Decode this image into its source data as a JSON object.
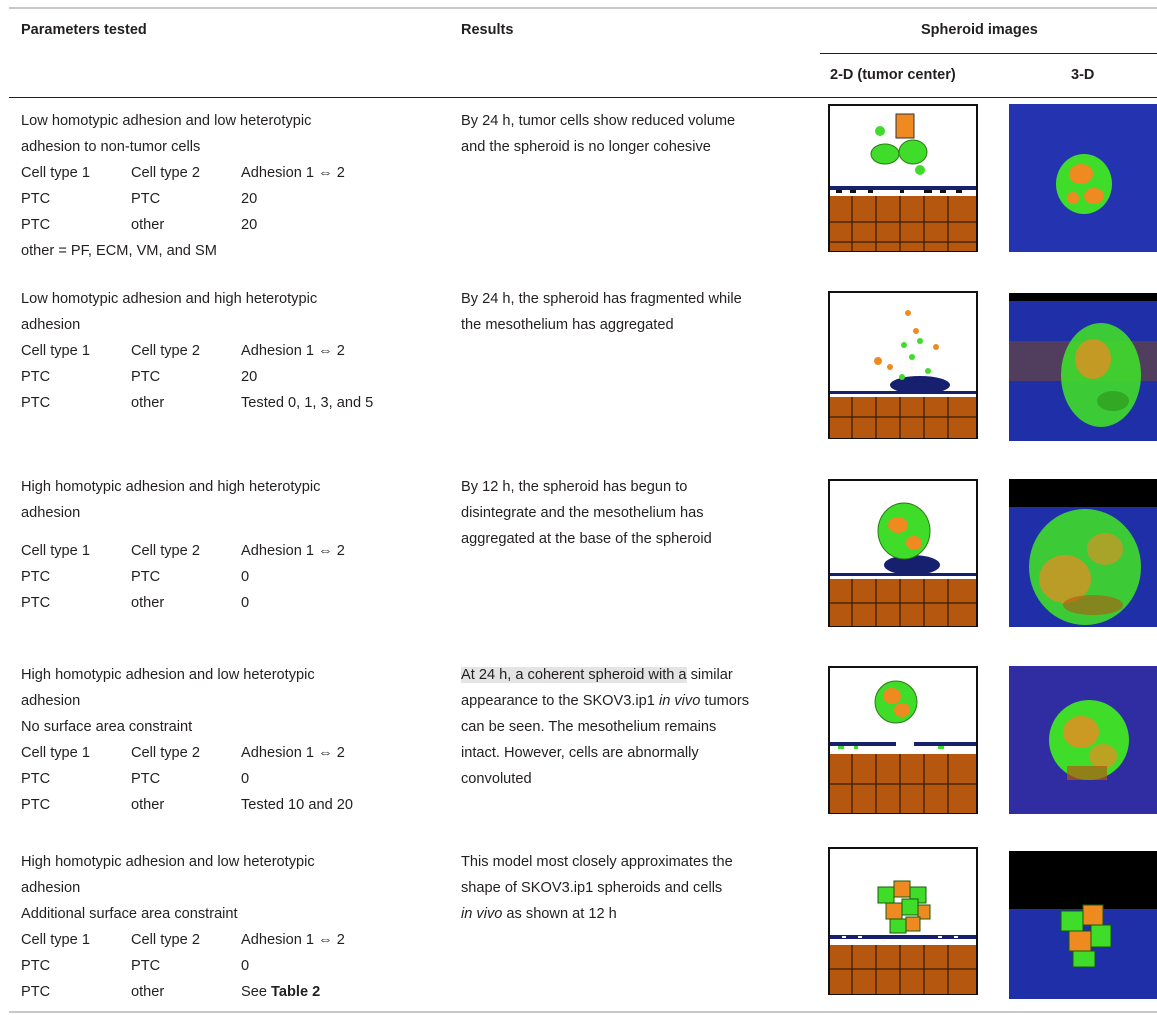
{
  "header": {
    "params": "Parameters tested",
    "results": "Results",
    "images": "Spheroid images",
    "col_2d": "2-D (tumor center)",
    "col_3d": "3-D"
  },
  "rows": [
    {
      "desc": [
        "Low homotypic adhesion and low heterotypic",
        "adhesion to non-tumor cells"
      ],
      "table": [
        [
          "Cell type 1",
          "Cell type 2",
          "Adhesion 1 ⇔ 2"
        ],
        [
          "PTC",
          "PTC",
          "20"
        ],
        [
          "PTC",
          "other",
          "20"
        ]
      ],
      "note": "other = PF, ECM, VM, and SM",
      "result": [
        "By 24 h, tumor cells show reduced volume",
        "and the spheroid is no longer cohesive"
      ]
    },
    {
      "desc": [
        "Low homotypic adhesion and high heterotypic",
        "adhesion"
      ],
      "table": [
        [
          "Cell type 1",
          "Cell type 2",
          "Adhesion 1 ⇔ 2"
        ],
        [
          "PTC",
          "PTC",
          "20"
        ],
        [
          "PTC",
          "other",
          "Tested 0, 1, 3, and 5"
        ]
      ],
      "result": [
        "By 24 h, the spheroid has fragmented while",
        "the mesothelium has aggregated"
      ]
    },
    {
      "desc": [
        "High homotypic adhesion and high heterotypic",
        "adhesion"
      ],
      "table": [
        [
          "Cell type 1",
          "Cell type 2",
          "Adhesion 1 ⇔ 2"
        ],
        [
          "PTC",
          "PTC",
          "0"
        ],
        [
          "PTC",
          "other",
          "0"
        ]
      ],
      "result": [
        "By 12 h, the spheroid has begun to",
        "disintegrate and the mesothelium has",
        "aggregated at the base of the spheroid"
      ]
    },
    {
      "desc": [
        "High homotypic adhesion and low heterotypic",
        "adhesion",
        "No surface area constraint"
      ],
      "table": [
        [
          "Cell type 1",
          "Cell type 2",
          "Adhesion 1 ⇔ 2"
        ],
        [
          "PTC",
          "PTC",
          "0"
        ],
        [
          "PTC",
          "other",
          "Tested 10 and 20"
        ]
      ],
      "result_highlight": "At 24 h, a coherent spheroid with a",
      "result_rest": " similar",
      "result": [
        "appearance to the SKOV3.ip1 in vivo tumors",
        "can be seen. The mesothelium remains",
        "intact. However, cells are abnormally",
        "convoluted"
      ]
    },
    {
      "desc": [
        "High homotypic adhesion and low heterotypic",
        "adhesion",
        "Additional surface area constraint"
      ],
      "table": [
        [
          "Cell type 1",
          "Cell type 2",
          "Adhesion 1 ⇔ 2"
        ],
        [
          "PTC",
          "PTC",
          "0"
        ],
        [
          "PTC",
          "other",
          "See"
        ]
      ],
      "table_ref": "Table 2",
      "result": [
        "This model most closely approximates the",
        "shape of SKOV3.ip1 spheroids and cells",
        "in vivo as shown at 12 h"
      ]
    }
  ],
  "colors": {
    "tumor_green": "#3fdc2a",
    "tumor_orange": "#ef8a20",
    "stroma_brown": "#b5570f",
    "mesothelium_navy": "#16206e",
    "background_3d": "#1f2fa8"
  }
}
